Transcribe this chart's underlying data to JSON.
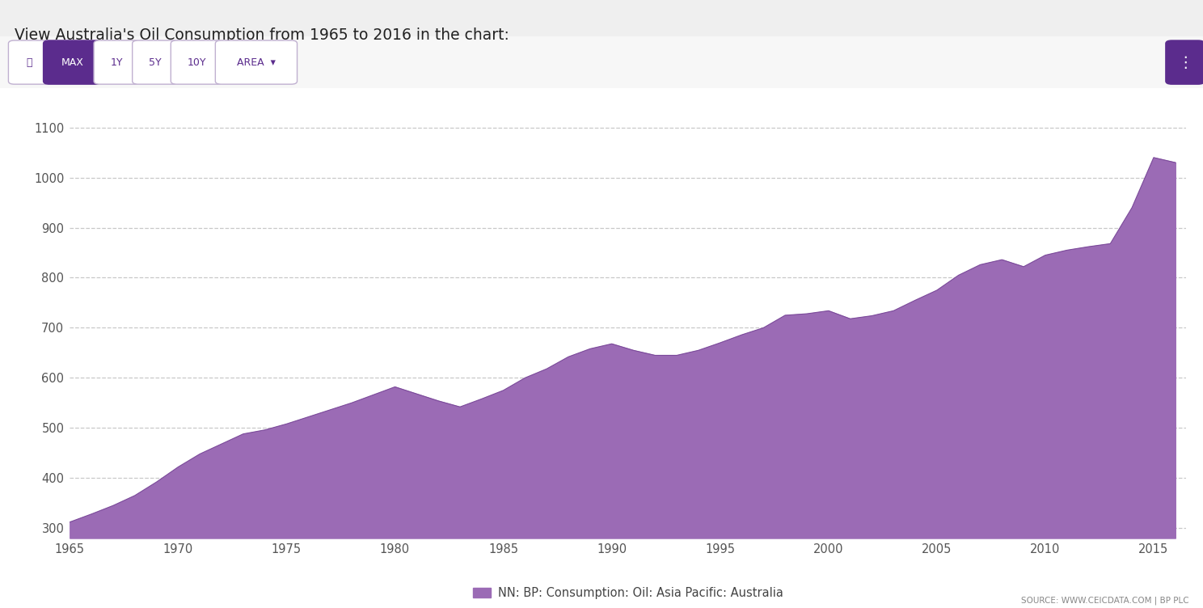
{
  "title": "View Australia's Oil Consumption from 1965 to 2016 in the chart:",
  "legend_label": "NN: BP: Consumption: Oil: Asia Pacific: Australia",
  "source": "SOURCE: WWW.CEICDATA.COM | BP PLC",
  "fill_color": "#9B6BB5",
  "line_color": "#7B4A9A",
  "background_color": "#ffffff",
  "plot_bg_color": "#ffffff",
  "header_bg_color": "#f0f0f0",
  "grid_color": "#c8c8c8",
  "ylim": [
    280,
    1130
  ],
  "yticks": [
    300,
    400,
    500,
    600,
    700,
    800,
    900,
    1000,
    1100
  ],
  "xticks": [
    1965,
    1970,
    1975,
    1980,
    1985,
    1990,
    1995,
    2000,
    2005,
    2010,
    2015
  ],
  "years": [
    1965,
    1966,
    1967,
    1968,
    1969,
    1970,
    1971,
    1972,
    1973,
    1974,
    1975,
    1976,
    1977,
    1978,
    1979,
    1980,
    1981,
    1982,
    1983,
    1984,
    1985,
    1986,
    1987,
    1988,
    1989,
    1990,
    1991,
    1992,
    1993,
    1994,
    1995,
    1996,
    1997,
    1998,
    1999,
    2000,
    2001,
    2002,
    2003,
    2004,
    2005,
    2006,
    2007,
    2008,
    2009,
    2010,
    2011,
    2012,
    2013,
    2014,
    2015,
    2016
  ],
  "values": [
    312,
    328,
    345,
    365,
    392,
    422,
    448,
    468,
    488,
    496,
    508,
    522,
    536,
    550,
    566,
    582,
    568,
    554,
    542,
    558,
    575,
    600,
    618,
    642,
    658,
    668,
    655,
    645,
    645,
    655,
    670,
    686,
    700,
    725,
    728,
    734,
    718,
    724,
    734,
    755,
    775,
    805,
    826,
    836,
    822,
    845,
    855,
    862,
    868,
    940,
    1040,
    1030
  ],
  "button_active_color": "#5B2C8D",
  "button_inactive_color": "#ffffff",
  "button_text_active": "#ffffff",
  "button_text_inactive": "#5B2C8D",
  "button_border_color": "#c0b0d0",
  "menu_button_color": "#5B2C8D"
}
